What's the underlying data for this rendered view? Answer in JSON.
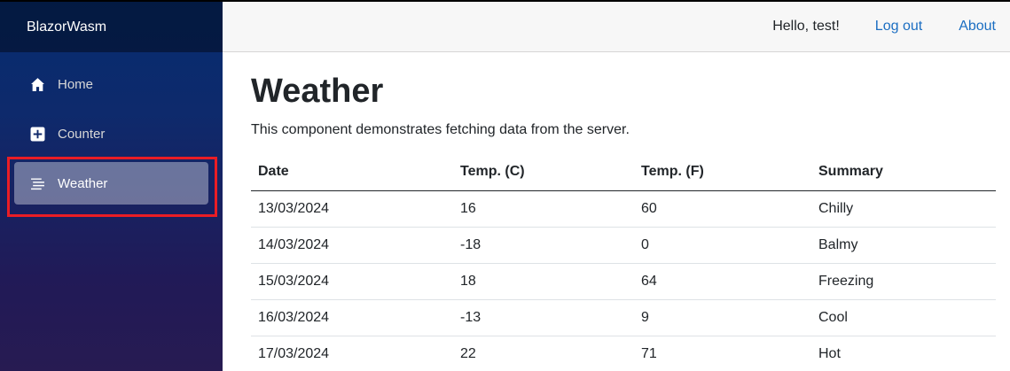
{
  "brand": "BlazorWasm",
  "nav": {
    "items": [
      {
        "label": "Home",
        "icon": "home-icon"
      },
      {
        "label": "Counter",
        "icon": "plus-square-icon"
      },
      {
        "label": "Weather",
        "icon": "list-icon"
      }
    ],
    "active": "Weather"
  },
  "topbar": {
    "greeting": "Hello, test!",
    "logout_label": "Log out",
    "about_label": "About"
  },
  "page": {
    "title": "Weather",
    "intro": "This component demonstrates fetching data from the server."
  },
  "table": {
    "headers": [
      "Date",
      "Temp. (C)",
      "Temp. (F)",
      "Summary"
    ],
    "rows": [
      [
        "13/03/2024",
        "16",
        "60",
        "Chilly"
      ],
      [
        "14/03/2024",
        "-18",
        "0",
        "Balmy"
      ],
      [
        "15/03/2024",
        "18",
        "64",
        "Freezing"
      ],
      [
        "16/03/2024",
        "-13",
        "9",
        "Cool"
      ],
      [
        "17/03/2024",
        "22",
        "71",
        "Hot"
      ]
    ]
  },
  "colors": {
    "highlight": "#ea1d25",
    "link": "#1b6ec2",
    "sidebar_top": "#062c6f",
    "sidebar_bottom": "#271b52"
  }
}
